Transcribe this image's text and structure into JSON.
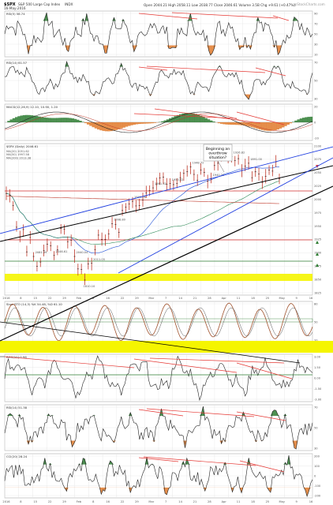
{
  "header": {
    "symbol": "$SPX",
    "name": "S&P 500 Large Cap Index",
    "exchange": "INDX",
    "sub": "16-May-2016",
    "quote": "Open 2044.21   High 2058.11   Low 2038.77   Close 2046.61   Volume 3.5B   Chg +9.61 (+0.47%)",
    "watermark": "@StockCharts.com"
  },
  "colors": {
    "price_bar": "#c0392b",
    "ma_short": "#1f4fd6",
    "ma_mid": "#2e8b57",
    "ma_long": "#c0392b",
    "pos_fill": "#2e7d32",
    "neg_fill": "#e07a2c",
    "trend_red": "#e53935",
    "trend_blue": "#1e3de0",
    "yellow_band": "#f5f500",
    "horiz_red": "#d32f2f",
    "horiz_green": "#2e7d32",
    "stoch_line": "#a0522d"
  },
  "panels": {
    "rsi1": {
      "label": "RSI(5) 56.74",
      "ticks": [
        "90",
        "70",
        "50",
        "30",
        "10"
      ]
    },
    "rsi2": {
      "label": "RSI(14) 61.57",
      "ticks": [
        "70",
        "50",
        "30"
      ]
    },
    "macd": {
      "label": "MACD(12,26,9) 12.10, 10.90, 1.20",
      "ticks": [
        "20",
        "0",
        "-20"
      ]
    },
    "price": {
      "label": "$SPX (Daily) 2046.61",
      "legend": [
        "MA(20) 2051.62",
        "MA(50) 1997.58",
        "MA(200) 2013.38"
      ],
      "ticks": [
        "2100",
        "2075",
        "2050",
        "2025",
        "2000",
        "1975",
        "1950",
        "1925",
        "1900",
        "1875",
        "1850",
        "1825"
      ],
      "annotation": [
        "Beginning an",
        "overthrow",
        "situation?"
      ],
      "price_labels": [
        "2081.39",
        "2046.61",
        "2040.04",
        "2011.05",
        "1998.80",
        "1991.06",
        "1981.32",
        "1950.82",
        "1948.72",
        "1940.24",
        "1926.82",
        "1891.00"
      ],
      "low_label": "1810.10"
    },
    "stoch": {
      "label": "Slow STO (14,3) %K 54.48, %D 61.10",
      "ticks": [
        "80",
        "50",
        "20"
      ]
    },
    "roc": {
      "label": "ROC(10) 0.96",
      "ticks": [
        "3.00",
        "1.50",
        "0.00",
        "-1.50",
        "-3.00"
      ]
    },
    "rsi3": {
      "label": "RSI(14) 51.38",
      "ticks": [
        "70",
        "50",
        "30"
      ]
    },
    "cci": {
      "label": "CCI(20) 28.24",
      "ticks": [
        "200",
        "100",
        "0",
        "-100",
        "-200"
      ]
    }
  },
  "xaxis": {
    "labels": [
      "2016",
      "8",
      "15",
      "22",
      "29",
      "Feb",
      "8",
      "16",
      "22",
      "29",
      "Mar",
      "7",
      "14",
      "21",
      "28",
      "Apr",
      "11",
      "18",
      "25",
      "May",
      "9",
      "16"
    ]
  },
  "chart_data": {
    "type": "line",
    "title": "$SPX S&P 500 Large Cap Index",
    "series": [
      {
        "name": "$SPX (Daily)",
        "values": [
          2016,
          2012,
          1990,
          1943,
          1922,
          1938,
          1890,
          1921,
          1880,
          1859,
          1868,
          1893,
          1906,
          1903,
          1882,
          1894,
          1940,
          1939,
          1912,
          1915,
          1880,
          1853,
          1852,
          1829,
          1864,
          1865,
          1895,
          1926,
          1917,
          1917,
          1929,
          1951,
          1949,
          1932,
          1979,
          1986,
          1993,
          1999,
          1989,
          1990,
          2002,
          2017,
          2022,
          2028,
          2035,
          2049,
          2051,
          2036,
          2037,
          2035,
          2037,
          2050,
          2059,
          2063,
          2073,
          2057,
          2044,
          2066,
          2061,
          2042,
          2047,
          2076,
          2081,
          2094,
          2100,
          2091,
          2095,
          2087,
          2091,
          2065,
          2075,
          2081,
          2050,
          2063,
          2058,
          2040,
          2053,
          2066,
          2064,
          2084,
          2047
        ]
      }
    ],
    "ylim": [
      1800,
      2120
    ]
  }
}
